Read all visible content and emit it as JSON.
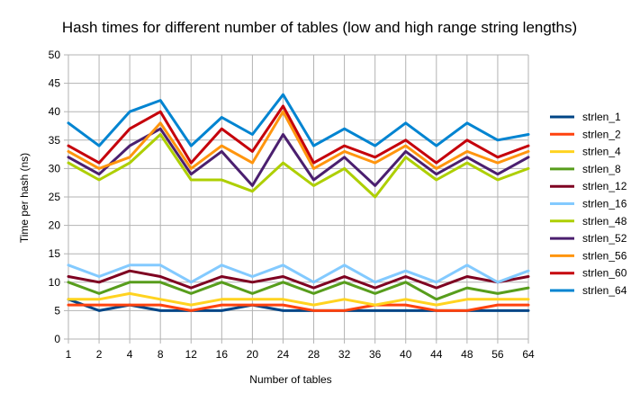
{
  "chart_data": {
    "type": "line",
    "title": "Hash times for different number of tables (low and high range string lengths)",
    "xlabel": "Number of tables",
    "ylabel": "Time per hash (ns)",
    "categories": [
      "1",
      "2",
      "4",
      "8",
      "12",
      "16",
      "20",
      "24",
      "28",
      "32",
      "36",
      "40",
      "44",
      "48",
      "56",
      "64"
    ],
    "ylim": [
      0,
      50
    ],
    "yticks": [
      0,
      5,
      10,
      15,
      20,
      25,
      30,
      35,
      40,
      45,
      50
    ],
    "grid": true,
    "legend_position": "right",
    "series": [
      {
        "name": "strlen_1",
        "color": "#004586",
        "values": [
          7,
          5,
          6,
          5,
          5,
          5,
          6,
          5,
          5,
          5,
          5,
          5,
          5,
          5,
          5,
          5
        ]
      },
      {
        "name": "strlen_2",
        "color": "#ff420e",
        "values": [
          6,
          6,
          6,
          6,
          5,
          6,
          6,
          6,
          5,
          5,
          6,
          6,
          5,
          5,
          6,
          6
        ]
      },
      {
        "name": "strlen_4",
        "color": "#ffd320",
        "values": [
          7,
          7,
          8,
          7,
          6,
          7,
          7,
          7,
          6,
          7,
          6,
          7,
          6,
          7,
          7,
          7
        ]
      },
      {
        "name": "strlen_8",
        "color": "#579d1c",
        "values": [
          10,
          8,
          10,
          10,
          8,
          10,
          8,
          10,
          8,
          10,
          8,
          10,
          7,
          9,
          8,
          9
        ]
      },
      {
        "name": "strlen_12",
        "color": "#7e0021",
        "values": [
          11,
          10,
          12,
          11,
          9,
          11,
          10,
          11,
          9,
          11,
          9,
          11,
          9,
          11,
          10,
          11
        ]
      },
      {
        "name": "strlen_16",
        "color": "#83caff",
        "values": [
          13,
          11,
          13,
          13,
          10,
          13,
          11,
          13,
          10,
          13,
          10,
          12,
          10,
          13,
          10,
          12
        ]
      },
      {
        "name": "strlen_48",
        "color": "#aecf00",
        "values": [
          31,
          28,
          31,
          36,
          28,
          28,
          26,
          31,
          27,
          30,
          25,
          32,
          28,
          31,
          28,
          30
        ]
      },
      {
        "name": "strlen_52",
        "color": "#4b1f6f",
        "values": [
          32,
          29,
          34,
          37,
          29,
          33,
          27,
          36,
          28,
          32,
          27,
          33,
          29,
          32,
          29,
          32
        ]
      },
      {
        "name": "strlen_56",
        "color": "#ff950e",
        "values": [
          33,
          30,
          32,
          38,
          30,
          34,
          31,
          40,
          30,
          33,
          31,
          34,
          30,
          33,
          31,
          33
        ]
      },
      {
        "name": "strlen_60",
        "color": "#c5000b",
        "values": [
          34,
          31,
          37,
          40,
          31,
          37,
          33,
          41,
          31,
          34,
          32,
          35,
          31,
          35,
          32,
          34
        ]
      },
      {
        "name": "strlen_64",
        "color": "#0084d1",
        "values": [
          38,
          34,
          40,
          42,
          34,
          39,
          36,
          43,
          34,
          37,
          34,
          38,
          34,
          38,
          35,
          36
        ]
      }
    ]
  }
}
